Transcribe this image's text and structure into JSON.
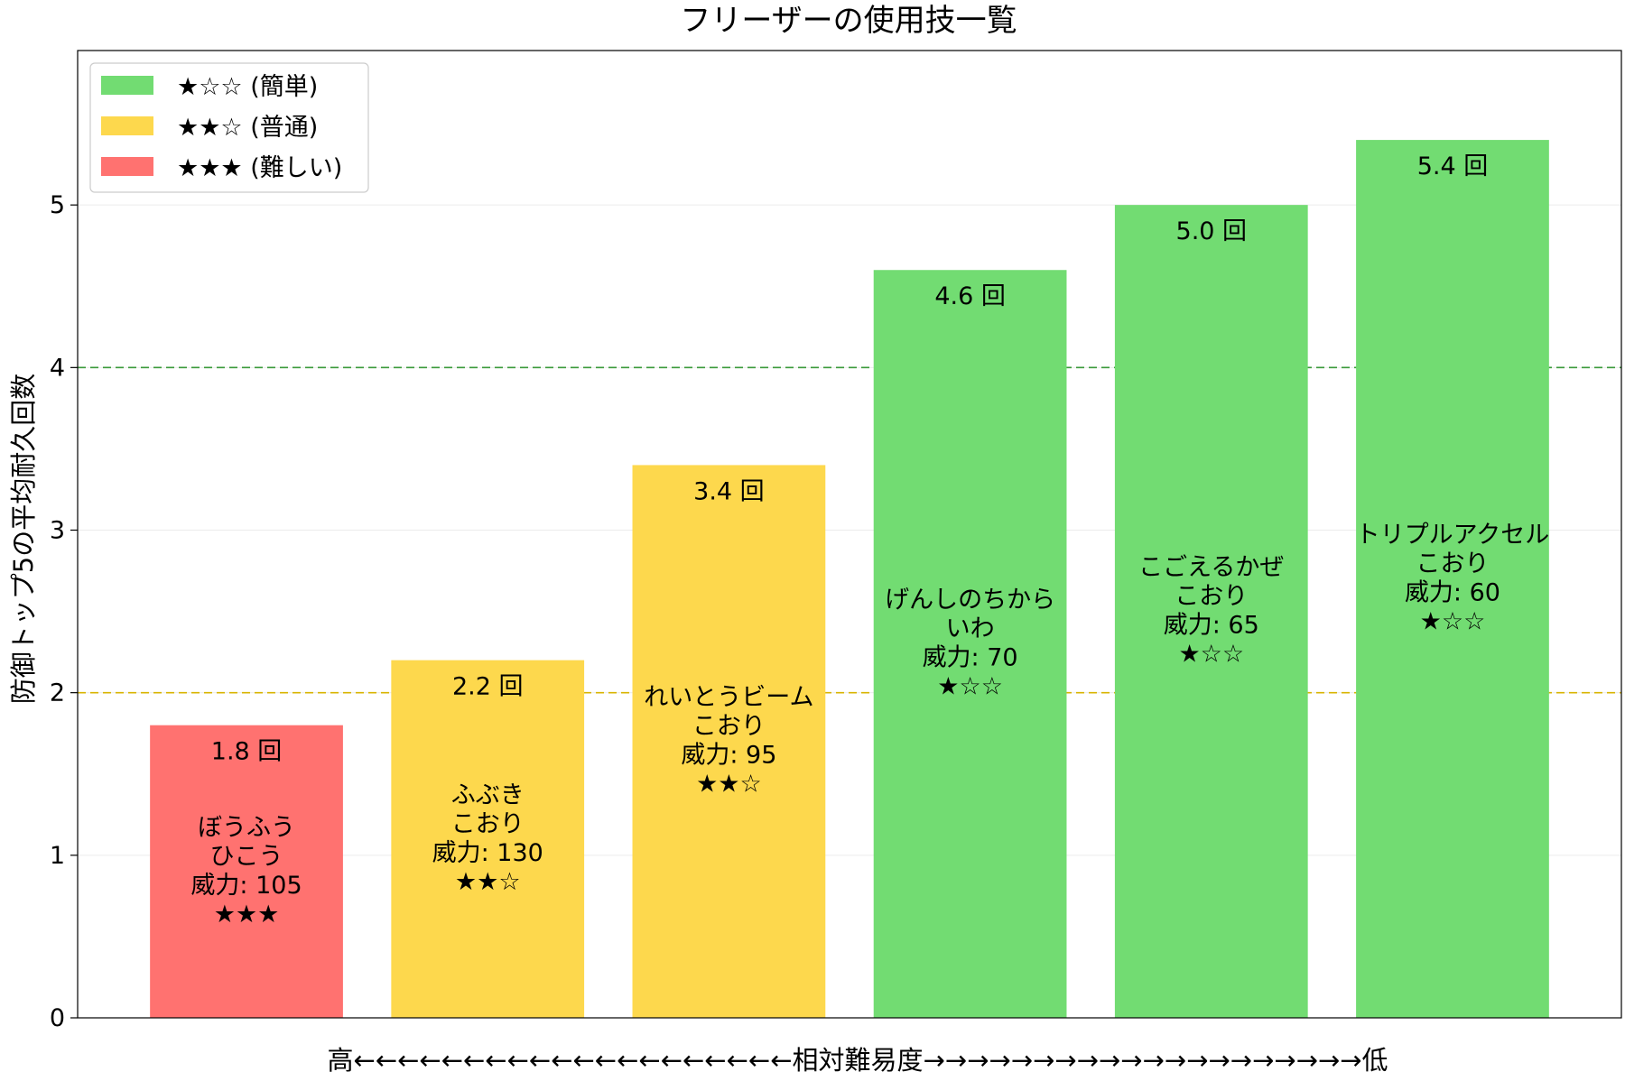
{
  "chart_data": {
    "type": "bar",
    "title": "フリーザーの使用技一覧",
    "xlabel": "高←←←←←←←←←←←←←←←←←←←←相対難易度→→→→→→→→→→→→→→→→→→→→低",
    "ylabel": "防御トップ5の平均耐久回数",
    "ylim": [
      0,
      5.95
    ],
    "yticks": [
      0,
      1,
      2,
      3,
      4,
      5
    ],
    "grid": true,
    "value_suffix": " 回",
    "legend": {
      "placement": "top-left",
      "entries": [
        {
          "label": "★☆☆ (簡単)",
          "color": "#72DC72"
        },
        {
          "label": "★★☆ (普通)",
          "color": "#FDD84D"
        },
        {
          "label": "★★★ (難しい)",
          "color": "#FF7270"
        }
      ]
    },
    "reference_lines": [
      {
        "y": 4,
        "color": "#3a9a3a"
      },
      {
        "y": 2,
        "color": "#d9b400"
      }
    ],
    "bars": [
      {
        "name_lines": [
          "ぼうふう",
          "ひこう"
        ],
        "power": "威力: 105",
        "stars": "★★★",
        "value": 1.8,
        "value_text": "1.8",
        "color": "#FF7270"
      },
      {
        "name_lines": [
          "ふぶき",
          "こおり"
        ],
        "power": "威力: 130",
        "stars": "★★☆",
        "value": 2.2,
        "value_text": "2.2",
        "color": "#FDD84D"
      },
      {
        "name_lines": [
          "れいとうビーム",
          "こおり"
        ],
        "power": "威力: 95",
        "stars": "★★☆",
        "value": 3.4,
        "value_text": "3.4",
        "color": "#FDD84D"
      },
      {
        "name_lines": [
          "げんしのちから",
          "いわ"
        ],
        "power": "威力: 70",
        "stars": "★☆☆",
        "value": 4.6,
        "value_text": "4.6",
        "color": "#72DC72"
      },
      {
        "name_lines": [
          "こごえるかぜ",
          "こおり"
        ],
        "power": "威力: 65",
        "stars": "★☆☆",
        "value": 5.0,
        "value_text": "5.0",
        "color": "#72DC72"
      },
      {
        "name_lines": [
          "トリプルアクセル",
          "こおり"
        ],
        "power": "威力: 60",
        "stars": "★☆☆",
        "value": 5.4,
        "value_text": "5.4",
        "color": "#72DC72"
      }
    ]
  }
}
